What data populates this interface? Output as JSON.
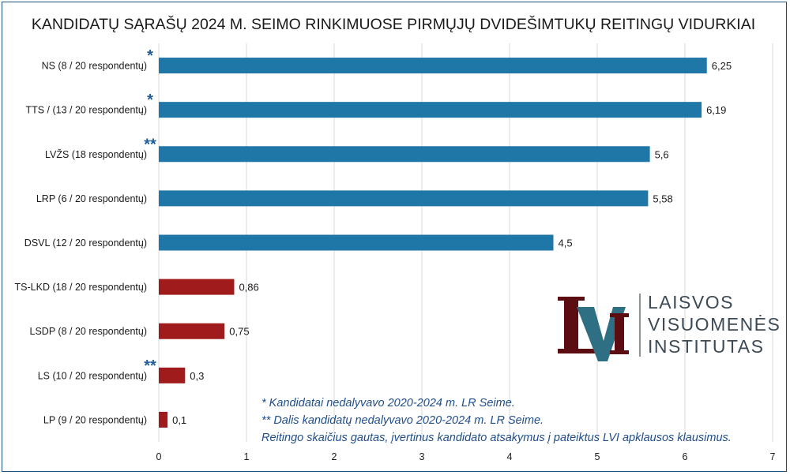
{
  "chart_data": {
    "type": "bar",
    "orientation": "horizontal",
    "title": "KANDIDATŲ SĄRAŠŲ 2024 M. SEIMO RINKIMUOSE PIRMŲJŲ DVIDEŠIMTUKŲ REITINGŲ VIDURKIAI",
    "categories": [
      "NS (8 / 20 respondentų)",
      "TTS / (13 / 20 respondentų)",
      "LVŽS (18 respondentų)",
      "LRP (6 / 20 respondentų)",
      "DSVL (12 / 20 respondentų)",
      "TS-LKD (18 / 20 respondentų)",
      "LSDP (8 / 20 respondentų)",
      "LS (10 / 20 respondentų)",
      "LP (9 / 20 respondentų)"
    ],
    "values": [
      6.25,
      6.19,
      5.6,
      5.58,
      4.5,
      0.86,
      0.75,
      0.3,
      0.1
    ],
    "value_labels": [
      "6,25",
      "6,19",
      "5,6",
      "5,58",
      "4,5",
      "0,86",
      "0,75",
      "0,3",
      "0,1"
    ],
    "markers": [
      "*",
      "*",
      "**",
      "",
      "",
      "",
      "",
      "**",
      ""
    ],
    "bar_colors": [
      "#1f77a8",
      "#1f77a8",
      "#1f77a8",
      "#1f77a8",
      "#1f77a8",
      "#a01c1c",
      "#a01c1c",
      "#a01c1c",
      "#a01c1c"
    ],
    "xlim": [
      0,
      7
    ],
    "xticks": [
      "0",
      "1",
      "2",
      "3",
      "4",
      "5",
      "6",
      "7"
    ],
    "grid": true,
    "notes": [
      "* Kandidatai nedalyvavo 2020-2024 m. LR Seime.",
      "** Dalis kandidatų nedalyvavo 2020-2024 m. LR Seime.",
      "Reitingo skaičius gautas, įvertinus kandidato atsakymus į pateiktus LVI apklausos klausimus."
    ]
  },
  "logo": {
    "lines": [
      "LAISVOS",
      "VISUOMENĖS",
      "INSTITUTAS"
    ],
    "mark_text": "LVI",
    "colors": {
      "dark_red": "#5c0d12",
      "teal": "#2f6f84",
      "text": "#3d4a55"
    }
  }
}
